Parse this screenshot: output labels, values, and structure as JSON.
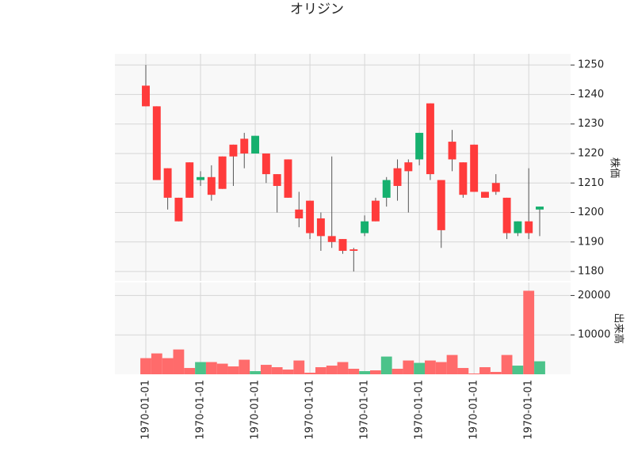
{
  "chart_data": {
    "type": "candlestick",
    "title": "オリジン",
    "categories": [
      "1970-01-01",
      null,
      null,
      null,
      null,
      "1970-01-01",
      null,
      null,
      null,
      null,
      "1970-01-01",
      null,
      null,
      null,
      null,
      "1970-01-01",
      null,
      null,
      null,
      null,
      "1970-01-01",
      null,
      null,
      null,
      null,
      "1970-01-01",
      null,
      null,
      null,
      null,
      "1970-01-01",
      null,
      null,
      null,
      null,
      "1970-01-01",
      null
    ],
    "open": [
      1236,
      1211,
      1205,
      1197,
      1205,
      1212,
      1206,
      1208,
      1219,
      1220,
      1226,
      1213,
      1209,
      1205,
      1198,
      1193,
      1192,
      1190,
      1187,
      1187,
      1197,
      1197,
      1211,
      1209,
      1214,
      1227,
      1213,
      1194,
      1218,
      1206,
      1207,
      1205,
      1207,
      1193,
      1197,
      1193,
      1202
    ],
    "high": [
      1250,
      1236,
      1215,
      1205,
      1217,
      1214,
      1216,
      1219,
      1223,
      1227,
      1226,
      1220,
      1213,
      1218,
      1207,
      1204,
      1200,
      1219,
      1191,
      1188,
      1199,
      1205,
      1212,
      1218,
      1218,
      1227,
      1237,
      1211,
      1228,
      1217,
      1223,
      1207,
      1213,
      1205,
      1197,
      1215,
      1202
    ],
    "low": [
      1236,
      1211,
      1201,
      1197,
      1205,
      1209,
      1204,
      1208,
      1209,
      1215,
      1220,
      1210,
      1200,
      1205,
      1195,
      1191,
      1187,
      1188,
      1186,
      1180,
      1192,
      1197,
      1202,
      1204,
      1200,
      1216,
      1211,
      1188,
      1214,
      1205,
      1207,
      1205,
      1206,
      1191,
      1192,
      1191,
      1192
    ],
    "close": [
      1243,
      1236,
      1215,
      1205,
      1217,
      1211,
      1212,
      1219,
      1223,
      1225,
      1220,
      1220,
      1213,
      1218,
      1201,
      1204,
      1198,
      1192,
      1191,
      1187.5,
      1193,
      1204,
      1205,
      1215,
      1217,
      1218,
      1237,
      1211,
      1224,
      1217,
      1223,
      1207,
      1210,
      1205,
      1193,
      1197,
      1201
    ],
    "volume": [
      4100,
      5300,
      4100,
      6300,
      1600,
      3100,
      3100,
      2700,
      2000,
      3700,
      800,
      2400,
      1800,
      1200,
      3500,
      400,
      1800,
      2200,
      3100,
      1400,
      800,
      1000,
      4500,
      1400,
      3500,
      2900,
      3500,
      3100,
      4900,
      1600,
      200,
      1800,
      600,
      4900,
      2200,
      21200,
      3300
    ],
    "up_color": "#ff3b3b",
    "down_color": "#16b06e",
    "up_volume_color": "#ff6b6b",
    "down_volume_color": "#4cc38a",
    "ylabel": "株価",
    "ylim": [
      1176.8,
      1253.8
    ],
    "yticks": [
      1180,
      1190,
      1200,
      1210,
      1220,
      1230,
      1240,
      1250
    ],
    "volume_label": "出来高",
    "volume_ylim": [
      0,
      23300
    ],
    "volume_yticks": [
      10000,
      20000
    ],
    "grid": true
  }
}
